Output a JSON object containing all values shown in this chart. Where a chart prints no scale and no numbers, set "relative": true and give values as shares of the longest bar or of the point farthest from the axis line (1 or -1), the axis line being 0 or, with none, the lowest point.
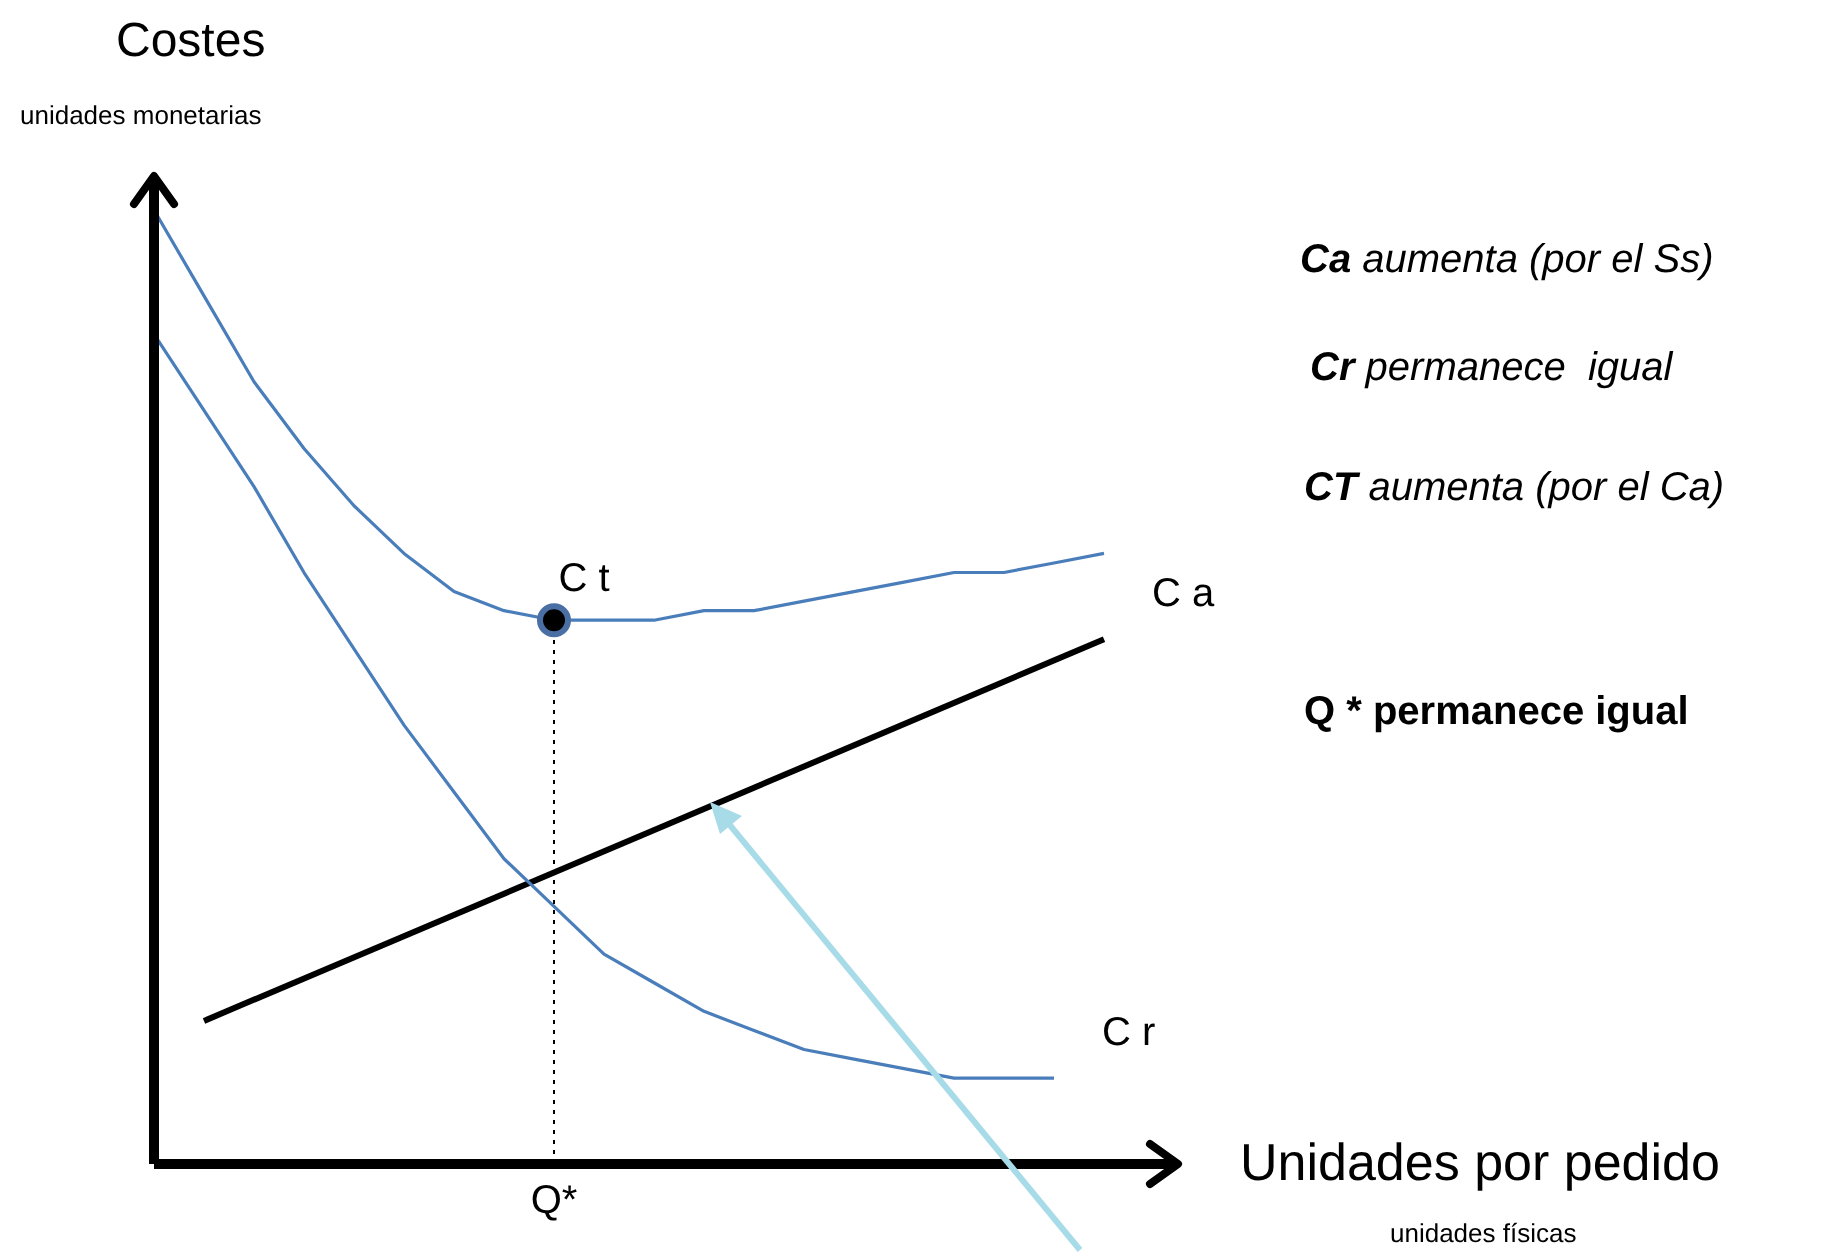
{
  "chart_data": {
    "type": "line",
    "relative": true,
    "legend": false,
    "grid": false,
    "marker": "none",
    "ylabel": "Costes",
    "xlabel": "Unidades por pedido",
    "categories": [
      null,
      null,
      null,
      null,
      null,
      null,
      null,
      null,
      null,
      null,
      null,
      null,
      null,
      null,
      null,
      null,
      null,
      null,
      null,
      null,
      null
    ],
    "series": [
      {
        "name": "C t",
        "color": "#4a7ebb",
        "values": [
          1,
          0.91,
          0.82,
          0.75,
          0.69,
          0.64,
          0.6,
          0.58,
          0.57,
          0.57,
          0.57,
          0.58,
          0.58,
          0.59,
          0.6,
          0.61,
          0.62,
          0.62,
          0.63,
          0.64,
          null
        ]
      },
      {
        "name": "C r",
        "color": "#4a7ebb",
        "values": [
          0.87,
          0.79,
          0.71,
          0.62,
          0.54,
          0.46,
          0.39,
          0.32,
          0.27,
          0.22,
          0.19,
          0.16,
          0.14,
          0.12,
          0.11,
          0.1,
          0.09,
          0.09,
          0.09,
          null,
          null
        ]
      },
      {
        "name": "C a",
        "color": "#000000",
        "values": [
          null,
          0.15,
          null,
          null,
          null,
          null,
          null,
          null,
          null,
          null,
          null,
          null,
          null,
          null,
          null,
          null,
          null,
          null,
          null,
          0.55,
          null
        ]
      }
    ],
    "ref_lines": [
      {
        "axis": "x",
        "label": "Q*",
        "line_style": "dotted",
        "color": "#000000"
      }
    ],
    "annotations": [
      "Ca aumenta (por el Ss)",
      "Cr permanece  igual",
      "CT aumenta (por el Ca)",
      "Q * permanece igual",
      "unidades monetarias",
      "unidades físicas"
    ]
  }
}
